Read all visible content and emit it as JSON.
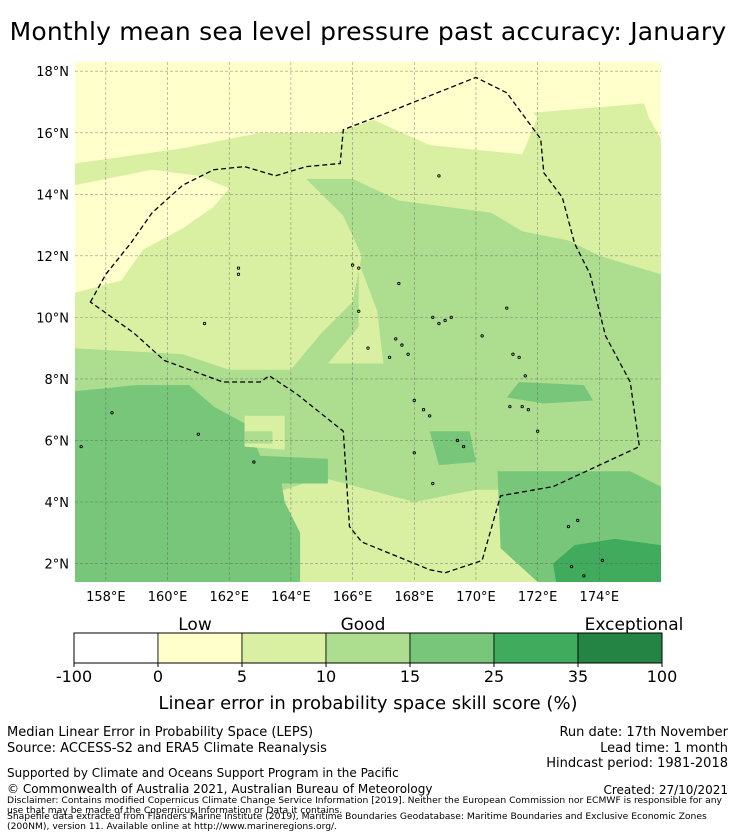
{
  "title": "Monthly mean sea level pressure past accuracy: January",
  "map": {
    "lat_ticks": [
      {
        "value": 18,
        "label": "18°N"
      },
      {
        "value": 16,
        "label": "16°N"
      },
      {
        "value": 14,
        "label": "14°N"
      },
      {
        "value": 12,
        "label": "12°N"
      },
      {
        "value": 10,
        "label": "10°N"
      },
      {
        "value": 8,
        "label": "8°N"
      },
      {
        "value": 6,
        "label": "6°N"
      },
      {
        "value": 4,
        "label": "4°N"
      },
      {
        "value": 2,
        "label": "2°N"
      }
    ],
    "lon_ticks": [
      {
        "value": 158,
        "label": "158°E"
      },
      {
        "value": 160,
        "label": "160°E"
      },
      {
        "value": 162,
        "label": "162°E"
      },
      {
        "value": 164,
        "label": "164°E"
      },
      {
        "value": 166,
        "label": "166°E"
      },
      {
        "value": 168,
        "label": "168°E"
      },
      {
        "value": 170,
        "label": "170°E"
      },
      {
        "value": 172,
        "label": "172°E"
      },
      {
        "value": 174,
        "label": "174°E"
      }
    ],
    "extent": {
      "lon_min": 157.0,
      "lon_max": 176.0,
      "lat_min": 1.4,
      "lat_max": 18.3
    },
    "colors": {
      "c5": "#ffffcc",
      "c10": "#d9f0a3",
      "c15": "#addd8e",
      "c25": "#78c679",
      "c35": "#41ab5d",
      "c100": "#238443",
      "low": "#ffffff"
    },
    "skill_regions": [
      {
        "class": "c10",
        "polygon": [
          [
            157,
            1.4
          ],
          [
            176,
            1.4
          ],
          [
            176,
            18.3
          ],
          [
            157,
            18.3
          ]
        ]
      },
      {
        "class": "c5",
        "polygon": [
          [
            157,
            18.3
          ],
          [
            176,
            18.3
          ],
          [
            176,
            17
          ],
          [
            170,
            16.5
          ],
          [
            168,
            16.9
          ],
          [
            165.5,
            16
          ],
          [
            163,
            16
          ],
          [
            160.5,
            15.5
          ],
          [
            157,
            15
          ]
        ]
      },
      {
        "class": "c5",
        "polygon": [
          [
            157,
            14.3
          ],
          [
            159.5,
            14.8
          ],
          [
            161,
            14.6
          ],
          [
            162,
            14.2
          ],
          [
            161.5,
            13.6
          ],
          [
            160.5,
            12.9
          ],
          [
            159.2,
            12.2
          ],
          [
            158.5,
            11.2
          ],
          [
            157,
            10.8
          ]
        ]
      },
      {
        "class": "c5",
        "polygon": [
          [
            166.5,
            16.5
          ],
          [
            168.5,
            15.6
          ],
          [
            169.5,
            15.5
          ],
          [
            171.5,
            15.3
          ],
          [
            172,
            16.5
          ],
          [
            171,
            17.5
          ],
          [
            168,
            17.7
          ]
        ]
      },
      {
        "class": "c5",
        "polygon": [
          [
            175,
            18.3
          ],
          [
            176,
            18.3
          ],
          [
            176,
            15.8
          ],
          [
            175.6,
            16.5
          ]
        ]
      },
      {
        "class": "c15",
        "polygon": [
          [
            164.5,
            14.5
          ],
          [
            166,
            14.5
          ],
          [
            167.5,
            13.8
          ],
          [
            169,
            13.6
          ],
          [
            170.5,
            13.4
          ],
          [
            171.5,
            12.8
          ],
          [
            173,
            12.5
          ],
          [
            174,
            12
          ],
          [
            175,
            11.7
          ],
          [
            176,
            11.4
          ],
          [
            176,
            4.5
          ],
          [
            172,
            4.4
          ],
          [
            170,
            4.4
          ],
          [
            168,
            4
          ],
          [
            165,
            4.8
          ],
          [
            163.5,
            4.3
          ],
          [
            163,
            5.5
          ],
          [
            161.5,
            6.2
          ],
          [
            159.5,
            6.8
          ],
          [
            157,
            6.8
          ],
          [
            157,
            9
          ],
          [
            160.5,
            8.8
          ],
          [
            162,
            8.3
          ],
          [
            164,
            8.3
          ],
          [
            165,
            9.5
          ],
          [
            166,
            10.5
          ],
          [
            166.3,
            12
          ],
          [
            165.7,
            13.3
          ]
        ]
      },
      {
        "class": "c10",
        "polygon": [
          [
            166.2,
            11.8
          ],
          [
            166.2,
            9.7
          ],
          [
            165.2,
            8.5
          ],
          [
            167,
            8.5
          ],
          [
            166.8,
            10.2
          ]
        ]
      },
      {
        "class": "c25",
        "polygon": [
          [
            157,
            1.4
          ],
          [
            164.3,
            1.4
          ],
          [
            164.3,
            3
          ],
          [
            163.8,
            4
          ],
          [
            163.7,
            4.6
          ],
          [
            165.2,
            4.6
          ],
          [
            165.2,
            5.4
          ],
          [
            163,
            5.5
          ],
          [
            162.6,
            6.5
          ],
          [
            161.5,
            7.1
          ],
          [
            160.7,
            7.8
          ],
          [
            159,
            7.8
          ],
          [
            157,
            7.6
          ]
        ]
      },
      {
        "class": "c25",
        "polygon": [
          [
            170.7,
            5
          ],
          [
            175,
            5
          ],
          [
            176,
            4.5
          ],
          [
            176,
            1.4
          ],
          [
            172,
            1.4
          ],
          [
            170.8,
            2.5
          ]
        ]
      },
      {
        "class": "c25",
        "polygon": [
          [
            171.4,
            7.9
          ],
          [
            173.5,
            7.8
          ],
          [
            173.8,
            7.3
          ],
          [
            172.2,
            7.2
          ],
          [
            171,
            7.4
          ]
        ]
      },
      {
        "class": "c25",
        "polygon": [
          [
            168.5,
            6.3
          ],
          [
            169.8,
            6.3
          ],
          [
            170,
            5.3
          ],
          [
            168.8,
            5.2
          ]
        ]
      },
      {
        "class": "c35",
        "polygon": [
          [
            172.6,
            1.4
          ],
          [
            176,
            1.4
          ],
          [
            176,
            2.6
          ],
          [
            174.5,
            2.8
          ],
          [
            173.2,
            2.6
          ],
          [
            172.5,
            2
          ]
        ]
      },
      {
        "class": "c10",
        "polygon": [
          [
            165.3,
            3.2
          ],
          [
            168.7,
            3.5
          ],
          [
            169,
            2.3
          ],
          [
            170.6,
            2.3
          ],
          [
            170.7,
            1.4
          ],
          [
            166.5,
            1.4
          ],
          [
            165.2,
            2
          ]
        ]
      },
      {
        "class": "c10",
        "polygon": [
          [
            162.5,
            6.8
          ],
          [
            163.8,
            6.8
          ],
          [
            163.8,
            5.7
          ],
          [
            162.5,
            5.8
          ]
        ]
      },
      {
        "class": "c15",
        "polygon": [
          [
            162.5,
            6.3
          ],
          [
            163.4,
            6.3
          ],
          [
            163.4,
            5.9
          ],
          [
            162.5,
            5.9
          ]
        ]
      }
    ],
    "eez_boundary": [
      [
        157.5,
        10.5
      ],
      [
        158,
        11.4
      ],
      [
        158.8,
        12.4
      ],
      [
        159.5,
        13.4
      ],
      [
        160.5,
        14.3
      ],
      [
        161.5,
        14.8
      ],
      [
        162.5,
        14.9
      ],
      [
        163.5,
        14.6
      ],
      [
        164.5,
        14.9
      ],
      [
        165.6,
        15.0
      ],
      [
        165.7,
        16.1
      ],
      [
        167,
        16.6
      ],
      [
        168.5,
        17.2
      ],
      [
        170,
        17.8
      ],
      [
        171,
        17.3
      ],
      [
        172.1,
        15.8
      ],
      [
        172.2,
        14.7
      ],
      [
        172.8,
        13.9
      ],
      [
        173.2,
        12.4
      ],
      [
        173.7,
        11.4
      ],
      [
        174.2,
        9.4
      ],
      [
        175,
        7.9
      ],
      [
        175.3,
        5.8
      ],
      [
        172.5,
        4.5
      ],
      [
        170.8,
        4.2
      ],
      [
        170.2,
        2.1
      ],
      [
        169,
        1.7
      ],
      [
        168.5,
        1.8
      ],
      [
        166.3,
        2.7
      ],
      [
        165.9,
        3.2
      ],
      [
        165.7,
        6.3
      ],
      [
        164.2,
        7.5
      ],
      [
        163.3,
        8.1
      ],
      [
        163,
        7.9
      ],
      [
        161.8,
        7.9
      ],
      [
        159.9,
        8.6
      ],
      [
        158.9,
        9.5
      ],
      [
        157.5,
        10.5
      ]
    ],
    "islands": [
      [
        158.2,
        6.9
      ],
      [
        161,
        6.2
      ],
      [
        157.2,
        5.8
      ],
      [
        162.8,
        5.3
      ],
      [
        162.3,
        11.6
      ],
      [
        162.3,
        11.4
      ],
      [
        166,
        11.7
      ],
      [
        166.2,
        11.6
      ],
      [
        167.5,
        11.1
      ],
      [
        168.8,
        14.6
      ],
      [
        161.2,
        9.8
      ],
      [
        166.2,
        10.2
      ],
      [
        168.6,
        10
      ],
      [
        168.8,
        9.8
      ],
      [
        169,
        9.9
      ],
      [
        169.2,
        10
      ],
      [
        170.2,
        9.4
      ],
      [
        171,
        10.3
      ],
      [
        167.4,
        9.3
      ],
      [
        167.6,
        9.1
      ],
      [
        166.5,
        9
      ],
      [
        167.8,
        8.8
      ],
      [
        167.2,
        8.7
      ],
      [
        171.2,
        8.8
      ],
      [
        171.4,
        8.7
      ],
      [
        171.6,
        8.1
      ],
      [
        168,
        7.3
      ],
      [
        168.3,
        7
      ],
      [
        168.5,
        6.8
      ],
      [
        171.1,
        7.1
      ],
      [
        171.5,
        7.1
      ],
      [
        171.7,
        7
      ],
      [
        172,
        6.3
      ],
      [
        169.4,
        6
      ],
      [
        169.6,
        5.8
      ],
      [
        168,
        5.6
      ],
      [
        168.6,
        4.6
      ],
      [
        173,
        3.2
      ],
      [
        173.3,
        3.4
      ],
      [
        173.1,
        1.9
      ],
      [
        173.5,
        1.6
      ],
      [
        174.1,
        2.1
      ]
    ]
  },
  "colorbar": {
    "title": "Linear error in probability space skill score (%)",
    "categories": [
      "Low",
      "Good",
      "Exceptional"
    ],
    "boundaries": [
      "-100",
      "0",
      "5",
      "10",
      "15",
      "25",
      "35",
      "100"
    ],
    "colors": [
      "#ffffff",
      "#ffffcc",
      "#d9f0a3",
      "#addd8e",
      "#78c679",
      "#41ab5d",
      "#238443"
    ]
  },
  "footer": {
    "left1": "Median Linear Error in Probability Space (LEPS)",
    "left2": "Source: ACCESS-S2 and ERA5 Climate Reanalysis",
    "right1": "Run date: 17th November",
    "right2": "Lead time: 1 month",
    "right3": "Hindcast period: 1981-2018",
    "support": "Supported by Climate and Oceans Support Program in the Pacific",
    "copyright": "© Commonwealth of Australia 2021, Australian Bureau of Meteorology",
    "created": "Created: 27/10/2021",
    "disclaimer1": "Disclaimer: Contains modified Copernicus Climate Change Service Information [2019]. Neither the European Commission nor ECMWF is responsible for any",
    "disclaimer2": "use that may be made of the Copernicus Information or Data it contains.",
    "shapefile1": "Shapefile data extracted from Flanders Marine Institute (2019), Maritime Boundaries Geodatabase: Maritime Boundaries and Exclusive Economic Zones",
    "shapefile2": "(200NM), version 11. Available online at http://www.marineregions.org/."
  }
}
